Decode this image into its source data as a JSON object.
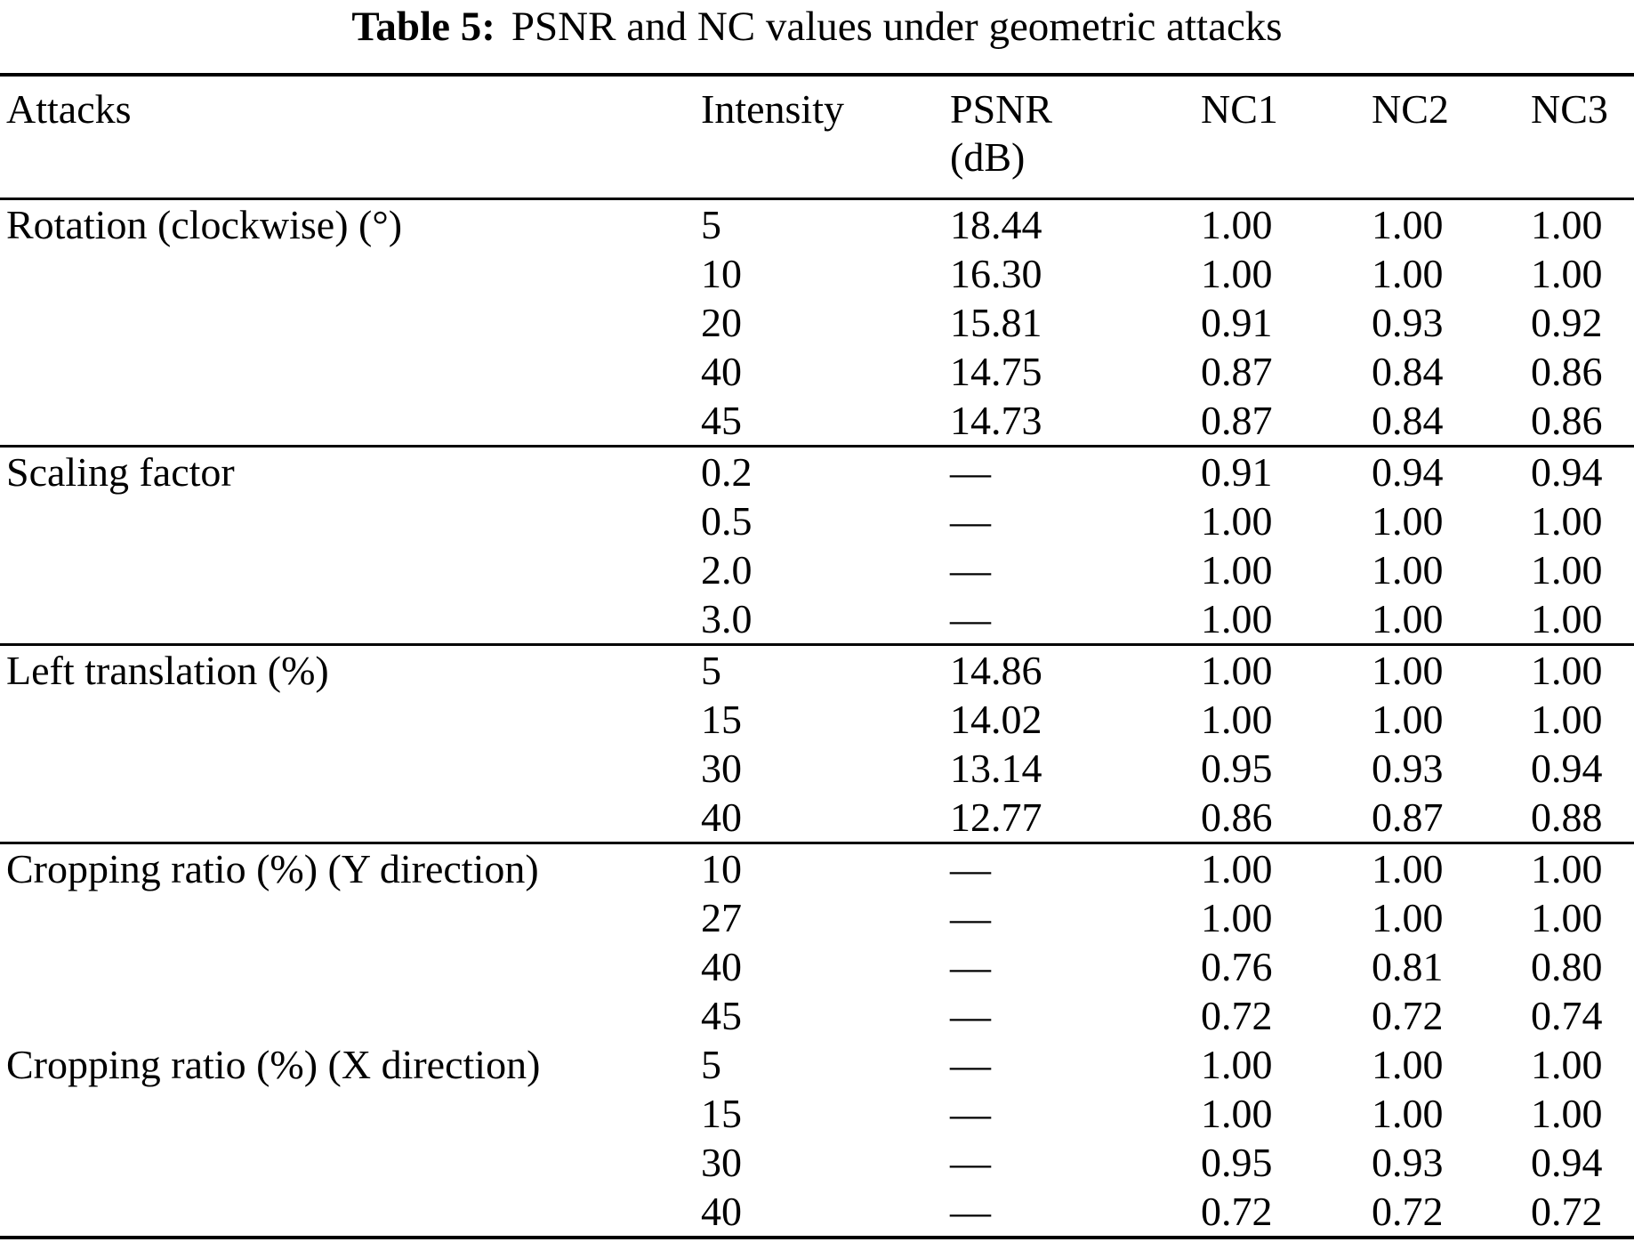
{
  "caption": {
    "label": "Table 5:",
    "text": "PSNR and NC values under geometric attacks"
  },
  "table": {
    "header": {
      "attacks": "Attacks",
      "intensity": "Intensity",
      "psnr_line1": "PSNR",
      "psnr_line2": "(dB)",
      "nc1": "NC1",
      "nc2": "NC2",
      "nc3": "NC3"
    },
    "sections": [
      {
        "attack": "Rotation (clockwise) (°)",
        "rule_after": true,
        "rows": [
          {
            "intensity": "5",
            "psnr": "18.44",
            "nc1": "1.00",
            "nc2": "1.00",
            "nc3": "1.00"
          },
          {
            "intensity": "10",
            "psnr": "16.30",
            "nc1": "1.00",
            "nc2": "1.00",
            "nc3": "1.00"
          },
          {
            "intensity": "20",
            "psnr": "15.81",
            "nc1": "0.91",
            "nc2": "0.93",
            "nc3": "0.92"
          },
          {
            "intensity": "40",
            "psnr": "14.75",
            "nc1": "0.87",
            "nc2": "0.84",
            "nc3": "0.86"
          },
          {
            "intensity": "45",
            "psnr": "14.73",
            "nc1": "0.87",
            "nc2": "0.84",
            "nc3": "0.86"
          }
        ]
      },
      {
        "attack": "Scaling factor",
        "rule_after": true,
        "rows": [
          {
            "intensity": "0.2",
            "psnr": "—",
            "nc1": "0.91",
            "nc2": "0.94",
            "nc3": "0.94"
          },
          {
            "intensity": "0.5",
            "psnr": "—",
            "nc1": "1.00",
            "nc2": "1.00",
            "nc3": "1.00"
          },
          {
            "intensity": "2.0",
            "psnr": "—",
            "nc1": "1.00",
            "nc2": "1.00",
            "nc3": "1.00"
          },
          {
            "intensity": "3.0",
            "psnr": "—",
            "nc1": "1.00",
            "nc2": "1.00",
            "nc3": "1.00"
          }
        ]
      },
      {
        "attack": "Left translation (%)",
        "rule_after": true,
        "rows": [
          {
            "intensity": "5",
            "psnr": "14.86",
            "nc1": "1.00",
            "nc2": "1.00",
            "nc3": "1.00"
          },
          {
            "intensity": "15",
            "psnr": "14.02",
            "nc1": "1.00",
            "nc2": "1.00",
            "nc3": "1.00"
          },
          {
            "intensity": "30",
            "psnr": "13.14",
            "nc1": "0.95",
            "nc2": "0.93",
            "nc3": "0.94"
          },
          {
            "intensity": "40",
            "psnr": "12.77",
            "nc1": "0.86",
            "nc2": "0.87",
            "nc3": "0.88"
          }
        ]
      },
      {
        "attack": "Cropping ratio (%) (Y direction)",
        "rule_after": false,
        "rows": [
          {
            "intensity": "10",
            "psnr": "—",
            "nc1": "1.00",
            "nc2": "1.00",
            "nc3": "1.00"
          },
          {
            "intensity": "27",
            "psnr": "—",
            "nc1": "1.00",
            "nc2": "1.00",
            "nc3": "1.00"
          },
          {
            "intensity": "40",
            "psnr": "—",
            "nc1": "0.76",
            "nc2": "0.81",
            "nc3": "0.80"
          },
          {
            "intensity": "45",
            "psnr": "—",
            "nc1": "0.72",
            "nc2": "0.72",
            "nc3": "0.74"
          }
        ]
      },
      {
        "attack": "Cropping ratio (%) (X direction)",
        "rule_after": false,
        "rows": [
          {
            "intensity": "5",
            "psnr": "—",
            "nc1": "1.00",
            "nc2": "1.00",
            "nc3": "1.00"
          },
          {
            "intensity": "15",
            "psnr": "—",
            "nc1": "1.00",
            "nc2": "1.00",
            "nc3": "1.00"
          },
          {
            "intensity": "30",
            "psnr": "—",
            "nc1": "0.95",
            "nc2": "0.93",
            "nc3": "0.94"
          },
          {
            "intensity": "40",
            "psnr": "—",
            "nc1": "0.72",
            "nc2": "0.72",
            "nc3": "0.72"
          }
        ]
      }
    ]
  }
}
